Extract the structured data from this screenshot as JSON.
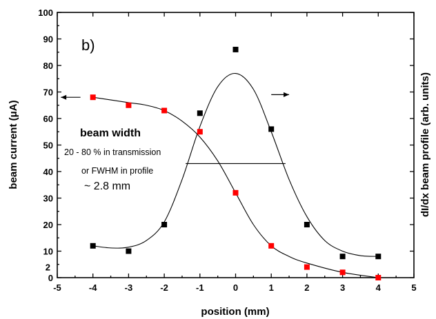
{
  "chart_data": {
    "type": "scatter",
    "panel_label": "b)",
    "xlabel": "position (mm)",
    "ylabel_left": "beam current (μA)",
    "ylabel_right": "dI/dx beam profile (arb. units)",
    "xlim": [
      -5,
      5
    ],
    "ylim": [
      0,
      100
    ],
    "x_ticks": [
      "-5",
      "-4",
      "-3",
      "-2",
      "-1",
      "0",
      "1",
      "2",
      "3",
      "4",
      "5"
    ],
    "y_ticks": [
      "0",
      "10",
      "20",
      "30",
      "40",
      "50",
      "60",
      "70",
      "80",
      "90",
      "100"
    ],
    "y_extra_tick": "2",
    "series": [
      {
        "color": "#ff0000",
        "marker": "square",
        "x": [
          -4,
          -3,
          -2,
          -1,
          0,
          1,
          2,
          3,
          4
        ],
        "y": [
          68,
          65,
          63,
          55,
          32,
          12,
          4,
          2,
          0
        ]
      },
      {
        "color": "#000000",
        "marker": "square",
        "x": [
          -4,
          -3,
          -2,
          -1,
          0,
          1,
          2,
          3,
          4
        ],
        "y": [
          12,
          10,
          20,
          62,
          86,
          56,
          20,
          8,
          8
        ]
      }
    ],
    "fit_curves": [
      {
        "color": "#000000",
        "x": [
          -4,
          -3,
          -2.5,
          -2,
          -1.5,
          -1,
          -0.5,
          0,
          0.5,
          1,
          1.5,
          2,
          3,
          4
        ],
        "y": [
          68,
          66,
          65,
          63,
          59,
          53,
          44,
          32,
          20,
          12,
          8,
          5.5,
          2,
          0
        ]
      },
      {
        "color": "#000000",
        "x": [
          -4,
          -3.5,
          -3,
          -2.5,
          -2,
          -1.5,
          -1,
          -0.5,
          0,
          0.5,
          1,
          1.5,
          2,
          2.5,
          3,
          3.5,
          4
        ],
        "y": [
          12,
          11.2,
          11.5,
          14,
          21,
          37,
          57,
          72,
          77,
          71,
          55,
          37,
          23,
          14,
          10,
          8.3,
          8
        ]
      }
    ],
    "fwhm_line": {
      "x": [
        -1.4,
        1.4
      ],
      "y": 43
    },
    "annotations": {
      "title": "beam width",
      "line1": "20 - 80 % in transmission",
      "line2": "or FWHM in profile",
      "value": "~ 2.8 mm"
    },
    "arrows": [
      {
        "direction": "left",
        "x": [
          -4.35,
          -4.9
        ],
        "y": 68
      },
      {
        "direction": "right",
        "x": [
          1.0,
          1.5
        ],
        "y": 69
      }
    ],
    "grid": false,
    "legend": "none"
  }
}
